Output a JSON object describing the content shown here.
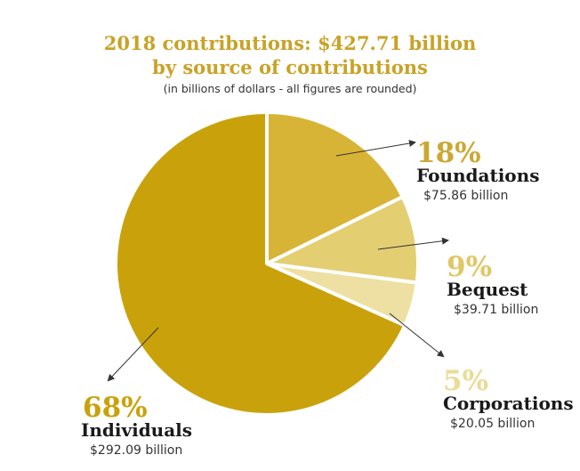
{
  "chart_data": {
    "type": "pie",
    "title": "2018 contributions: $427.71 billion",
    "subtitle": "by source of contributions",
    "note": "(in billions of dollars - all figures are rounded)",
    "slices": [
      {
        "label": "Foundations",
        "percent_label": "18%",
        "value": 75.86,
        "amount_label": "$75.86 billion",
        "color": "#d8b436",
        "pct_color": "#cda733"
      },
      {
        "label": "Bequest",
        "percent_label": "9%",
        "value": 39.71,
        "amount_label": "$39.71 billion",
        "color": "#e3ce72",
        "pct_color": "#e0c766"
      },
      {
        "label": "Corporations",
        "percent_label": "5%",
        "value": 20.05,
        "amount_label": "$20.05 billion",
        "color": "#eee0a2",
        "pct_color": "#ebdb96"
      },
      {
        "label": "Individuals",
        "percent_label": "68%",
        "value": 292.09,
        "amount_label": "$292.09 billion",
        "color": "#c9a20b",
        "pct_color": "#c9a20b"
      }
    ]
  }
}
